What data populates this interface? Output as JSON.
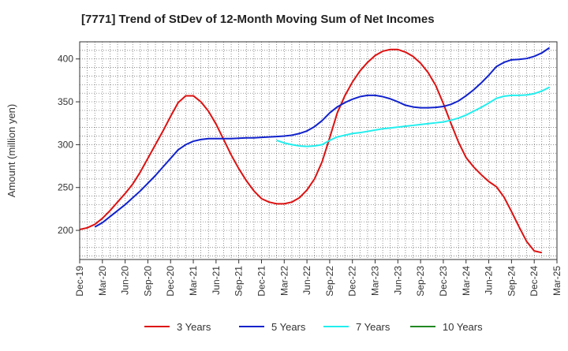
{
  "chart_data": {
    "type": "line",
    "title": "[7771]  Trend of StDev of 12-Month Moving Sum of Net Incomes",
    "ylabel": "Amount (million yen)",
    "xlabel": "",
    "ylim": [
      166,
      420
    ],
    "yticks": [
      200,
      250,
      300,
      350,
      400
    ],
    "xlim": [
      "2019-12",
      "2025-03"
    ],
    "xticks": [
      "Dec-19",
      "Mar-20",
      "Jun-20",
      "Sep-20",
      "Dec-20",
      "Mar-21",
      "Jun-21",
      "Sep-21",
      "Dec-21",
      "Mar-22",
      "Jun-22",
      "Sep-22",
      "Dec-22",
      "Mar-23",
      "Jun-23",
      "Sep-23",
      "Dec-23",
      "Mar-24",
      "Jun-24",
      "Sep-24",
      "Dec-24",
      "Mar-25"
    ],
    "grid": true,
    "legend_position": "bottom",
    "series": [
      {
        "name": "3 Years",
        "color": "#dd1111",
        "points": [
          [
            "2019-12",
            201
          ],
          [
            "2020-01",
            203
          ],
          [
            "2020-02",
            207
          ],
          [
            "2020-03",
            214
          ],
          [
            "2020-04",
            223
          ],
          [
            "2020-05",
            233
          ],
          [
            "2020-06",
            243
          ],
          [
            "2020-07",
            254
          ],
          [
            "2020-08",
            268
          ],
          [
            "2020-09",
            284
          ],
          [
            "2020-10",
            300
          ],
          [
            "2020-11",
            316
          ],
          [
            "2020-12",
            333
          ],
          [
            "2021-01",
            349
          ],
          [
            "2021-02",
            357
          ],
          [
            "2021-03",
            357
          ],
          [
            "2021-04",
            350
          ],
          [
            "2021-05",
            339
          ],
          [
            "2021-06",
            324
          ],
          [
            "2021-07",
            306
          ],
          [
            "2021-08",
            288
          ],
          [
            "2021-09",
            272
          ],
          [
            "2021-10",
            258
          ],
          [
            "2021-11",
            246
          ],
          [
            "2021-12",
            237
          ],
          [
            "2022-01",
            233
          ],
          [
            "2022-02",
            231
          ],
          [
            "2022-03",
            231
          ],
          [
            "2022-04",
            233
          ],
          [
            "2022-05",
            238
          ],
          [
            "2022-06",
            247
          ],
          [
            "2022-07",
            260
          ],
          [
            "2022-08",
            280
          ],
          [
            "2022-09",
            308
          ],
          [
            "2022-10",
            337
          ],
          [
            "2022-11",
            357
          ],
          [
            "2022-12",
            373
          ],
          [
            "2023-01",
            386
          ],
          [
            "2023-02",
            396
          ],
          [
            "2023-03",
            404
          ],
          [
            "2023-04",
            409
          ],
          [
            "2023-05",
            411
          ],
          [
            "2023-06",
            411
          ],
          [
            "2023-07",
            408
          ],
          [
            "2023-08",
            403
          ],
          [
            "2023-09",
            395
          ],
          [
            "2023-10",
            384
          ],
          [
            "2023-11",
            369
          ],
          [
            "2023-12",
            348
          ],
          [
            "2024-01",
            325
          ],
          [
            "2024-02",
            303
          ],
          [
            "2024-03",
            285
          ],
          [
            "2024-04",
            274
          ],
          [
            "2024-05",
            265
          ],
          [
            "2024-06",
            257
          ],
          [
            "2024-07",
            251
          ],
          [
            "2024-08",
            239
          ],
          [
            "2024-09",
            222
          ],
          [
            "2024-10",
            204
          ],
          [
            "2024-11",
            187
          ],
          [
            "2024-12",
            176
          ],
          [
            "2025-01",
            174
          ]
        ]
      },
      {
        "name": "5 Years",
        "color": "#1122cc",
        "points": [
          [
            "2020-02",
            204
          ],
          [
            "2020-03",
            209
          ],
          [
            "2020-04",
            216
          ],
          [
            "2020-05",
            223
          ],
          [
            "2020-06",
            230
          ],
          [
            "2020-07",
            238
          ],
          [
            "2020-08",
            246
          ],
          [
            "2020-09",
            255
          ],
          [
            "2020-10",
            264
          ],
          [
            "2020-11",
            274
          ],
          [
            "2020-12",
            284
          ],
          [
            "2021-01",
            294
          ],
          [
            "2021-02",
            300
          ],
          [
            "2021-03",
            304
          ],
          [
            "2021-04",
            306
          ],
          [
            "2021-05",
            307
          ],
          [
            "2021-06",
            307
          ],
          [
            "2021-07",
            307
          ],
          [
            "2021-08",
            307
          ],
          [
            "2021-09",
            307.5
          ],
          [
            "2021-10",
            308
          ],
          [
            "2021-11",
            308
          ],
          [
            "2021-12",
            308.5
          ],
          [
            "2022-01",
            309
          ],
          [
            "2022-02",
            309.5
          ],
          [
            "2022-03",
            310
          ],
          [
            "2022-04",
            311
          ],
          [
            "2022-05",
            313
          ],
          [
            "2022-06",
            316
          ],
          [
            "2022-07",
            321
          ],
          [
            "2022-08",
            328
          ],
          [
            "2022-09",
            337
          ],
          [
            "2022-10",
            344
          ],
          [
            "2022-11",
            349
          ],
          [
            "2022-12",
            353
          ],
          [
            "2023-01",
            356
          ],
          [
            "2023-02",
            357.5
          ],
          [
            "2023-03",
            357.5
          ],
          [
            "2023-04",
            356
          ],
          [
            "2023-05",
            353.5
          ],
          [
            "2023-06",
            350
          ],
          [
            "2023-07",
            346
          ],
          [
            "2023-08",
            344
          ],
          [
            "2023-09",
            343
          ],
          [
            "2023-10",
            343
          ],
          [
            "2023-11",
            343.5
          ],
          [
            "2023-12",
            344.5
          ],
          [
            "2024-01",
            347
          ],
          [
            "2024-02",
            351
          ],
          [
            "2024-03",
            357
          ],
          [
            "2024-04",
            364
          ],
          [
            "2024-05",
            372
          ],
          [
            "2024-06",
            381
          ],
          [
            "2024-07",
            391
          ],
          [
            "2024-08",
            396
          ],
          [
            "2024-09",
            399
          ],
          [
            "2024-10",
            399.5
          ],
          [
            "2024-11",
            400.5
          ],
          [
            "2024-12",
            403
          ],
          [
            "2025-01",
            407
          ],
          [
            "2025-02",
            413
          ]
        ]
      },
      {
        "name": "7 Years",
        "color": "#22eeee",
        "points": [
          [
            "2022-02",
            305
          ],
          [
            "2022-03",
            302
          ],
          [
            "2022-04",
            300
          ],
          [
            "2022-05",
            298.5
          ],
          [
            "2022-06",
            298
          ],
          [
            "2022-07",
            298.5
          ],
          [
            "2022-08",
            300
          ],
          [
            "2022-09",
            305
          ],
          [
            "2022-10",
            309
          ],
          [
            "2022-11",
            311
          ],
          [
            "2022-12",
            313
          ],
          [
            "2023-01",
            314
          ],
          [
            "2023-02",
            315.5
          ],
          [
            "2023-03",
            317
          ],
          [
            "2023-04",
            318.5
          ],
          [
            "2023-05",
            319.5
          ],
          [
            "2023-06",
            320.5
          ],
          [
            "2023-07",
            321.5
          ],
          [
            "2023-08",
            322.5
          ],
          [
            "2023-09",
            323.5
          ],
          [
            "2023-10",
            324.5
          ],
          [
            "2023-11",
            325.5
          ],
          [
            "2023-12",
            326.5
          ],
          [
            "2024-01",
            328.5
          ],
          [
            "2024-02",
            331
          ],
          [
            "2024-03",
            334.5
          ],
          [
            "2024-04",
            339
          ],
          [
            "2024-05",
            343.5
          ],
          [
            "2024-06",
            348.5
          ],
          [
            "2024-07",
            354
          ],
          [
            "2024-08",
            356.5
          ],
          [
            "2024-09",
            357.5
          ],
          [
            "2024-10",
            357.5
          ],
          [
            "2024-11",
            358
          ],
          [
            "2024-12",
            359.5
          ],
          [
            "2025-01",
            362.5
          ],
          [
            "2025-02",
            367
          ]
        ]
      },
      {
        "name": "10 Years",
        "color": "#228822",
        "points": []
      }
    ]
  }
}
